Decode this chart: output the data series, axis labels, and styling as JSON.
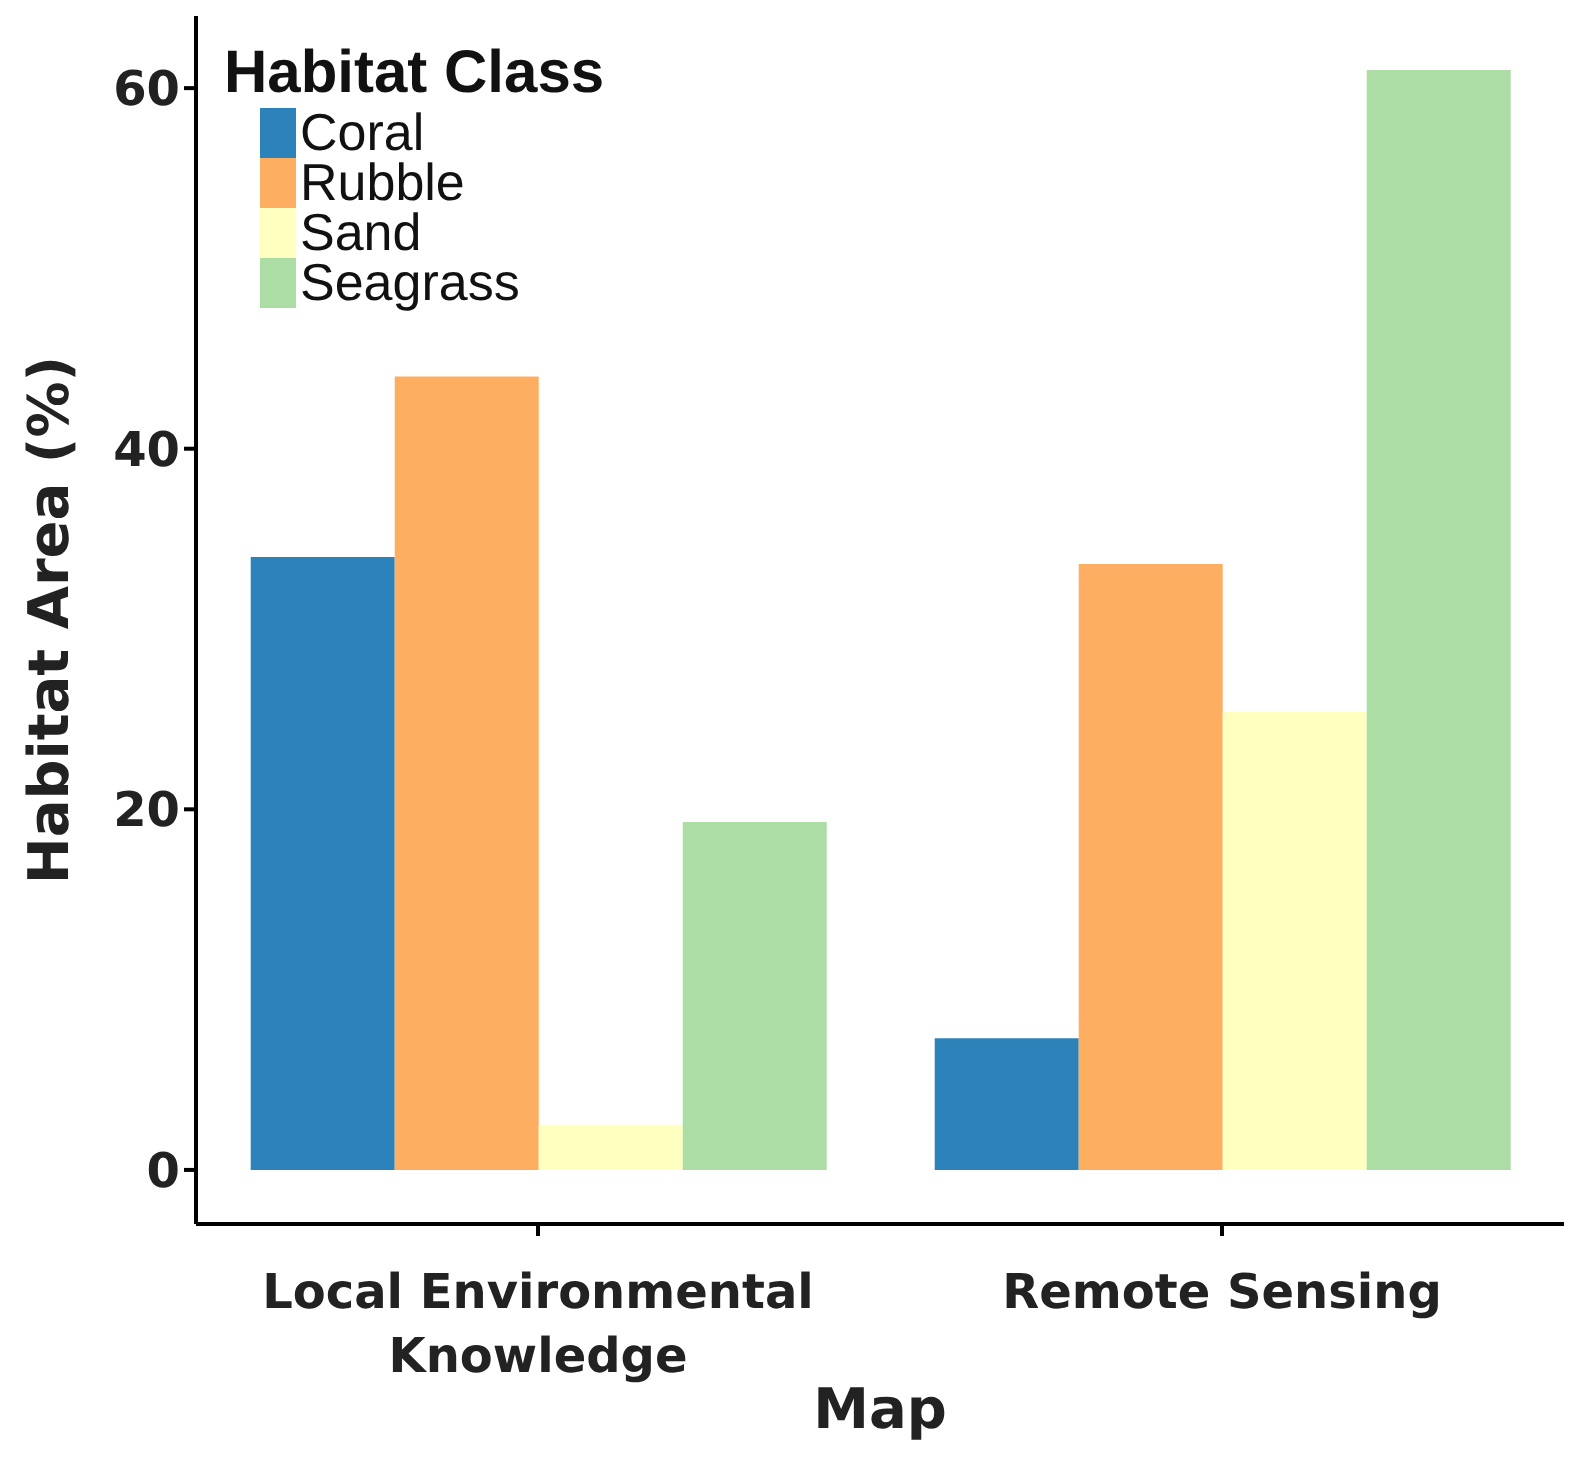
{
  "chart_data": {
    "type": "bar",
    "xlabel": "Map",
    "ylabel": "Habitat Area (%)",
    "legend_title": "Habitat Class",
    "legend": "top left",
    "grid": false,
    "categories": [
      "Local Environmental Knowledge",
      "Remote Sensing"
    ],
    "series": [
      {
        "name": "Coral",
        "color": "#2b83ba",
        "values": [
          34.0,
          7.3
        ]
      },
      {
        "name": "Rubble",
        "color": "#fdae61",
        "values": [
          44.0,
          33.6
        ]
      },
      {
        "name": "Sand",
        "color": "#ffffbf",
        "values": [
          2.5,
          25.4
        ]
      },
      {
        "name": "Seagrass",
        "color": "#abdda4",
        "values": [
          19.3,
          61.0
        ]
      }
    ],
    "ylim": [
      -3,
      64
    ],
    "yticks": [
      0,
      20,
      40,
      60
    ]
  }
}
